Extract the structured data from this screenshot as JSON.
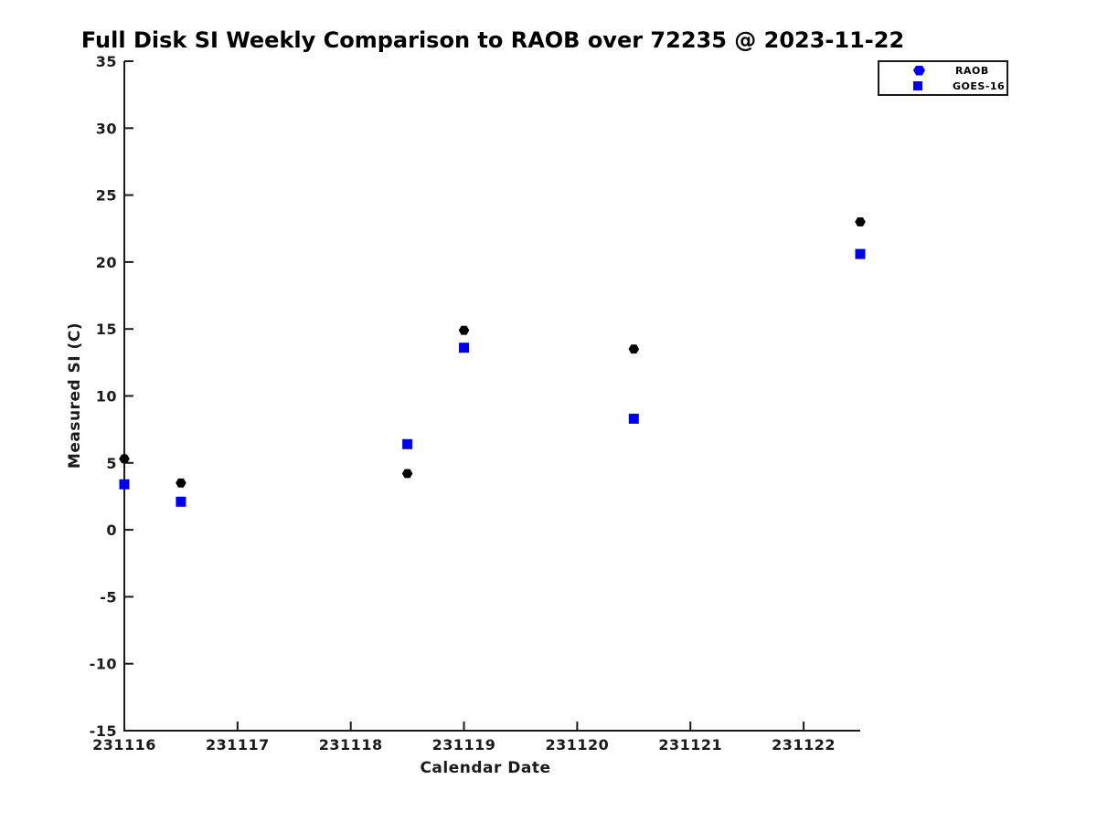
{
  "chart_data": {
    "type": "scatter",
    "title": "Full Disk SI Weekly Comparison to RAOB over 72235 @ 2023-11-22",
    "xlabel": "Calendar Date",
    "ylabel": "Measured SI (C)",
    "xlim": [
      231116,
      231122.5
    ],
    "ylim": [
      -15,
      35
    ],
    "x_ticks": [
      231116,
      231117,
      231118,
      231119,
      231120,
      231121,
      231122
    ],
    "y_ticks": [
      -15,
      -10,
      -5,
      0,
      5,
      10,
      15,
      20,
      25,
      30,
      35
    ],
    "grid": false,
    "legend_position": "top-right-outside-plot",
    "axis_color": "#1a1a1a",
    "background_color": "#ffffff",
    "series": [
      {
        "name": "RAOB",
        "marker": "hexagon",
        "color": "#000000",
        "legend_marker_color": "#0000EE",
        "x": [
          231116.0,
          231116.5,
          231118.5,
          231119.0,
          231120.5,
          231122.5
        ],
        "y": [
          5.3,
          3.5,
          4.2,
          14.9,
          13.5,
          23.0
        ]
      },
      {
        "name": "GOES-16",
        "marker": "square",
        "color": "#0000EE",
        "legend_marker_color": "#0000EE",
        "x": [
          231116.0,
          231116.5,
          231118.5,
          231119.0,
          231120.5,
          231122.5
        ],
        "y": [
          3.4,
          2.1,
          6.4,
          13.6,
          8.3,
          20.6
        ]
      }
    ]
  }
}
